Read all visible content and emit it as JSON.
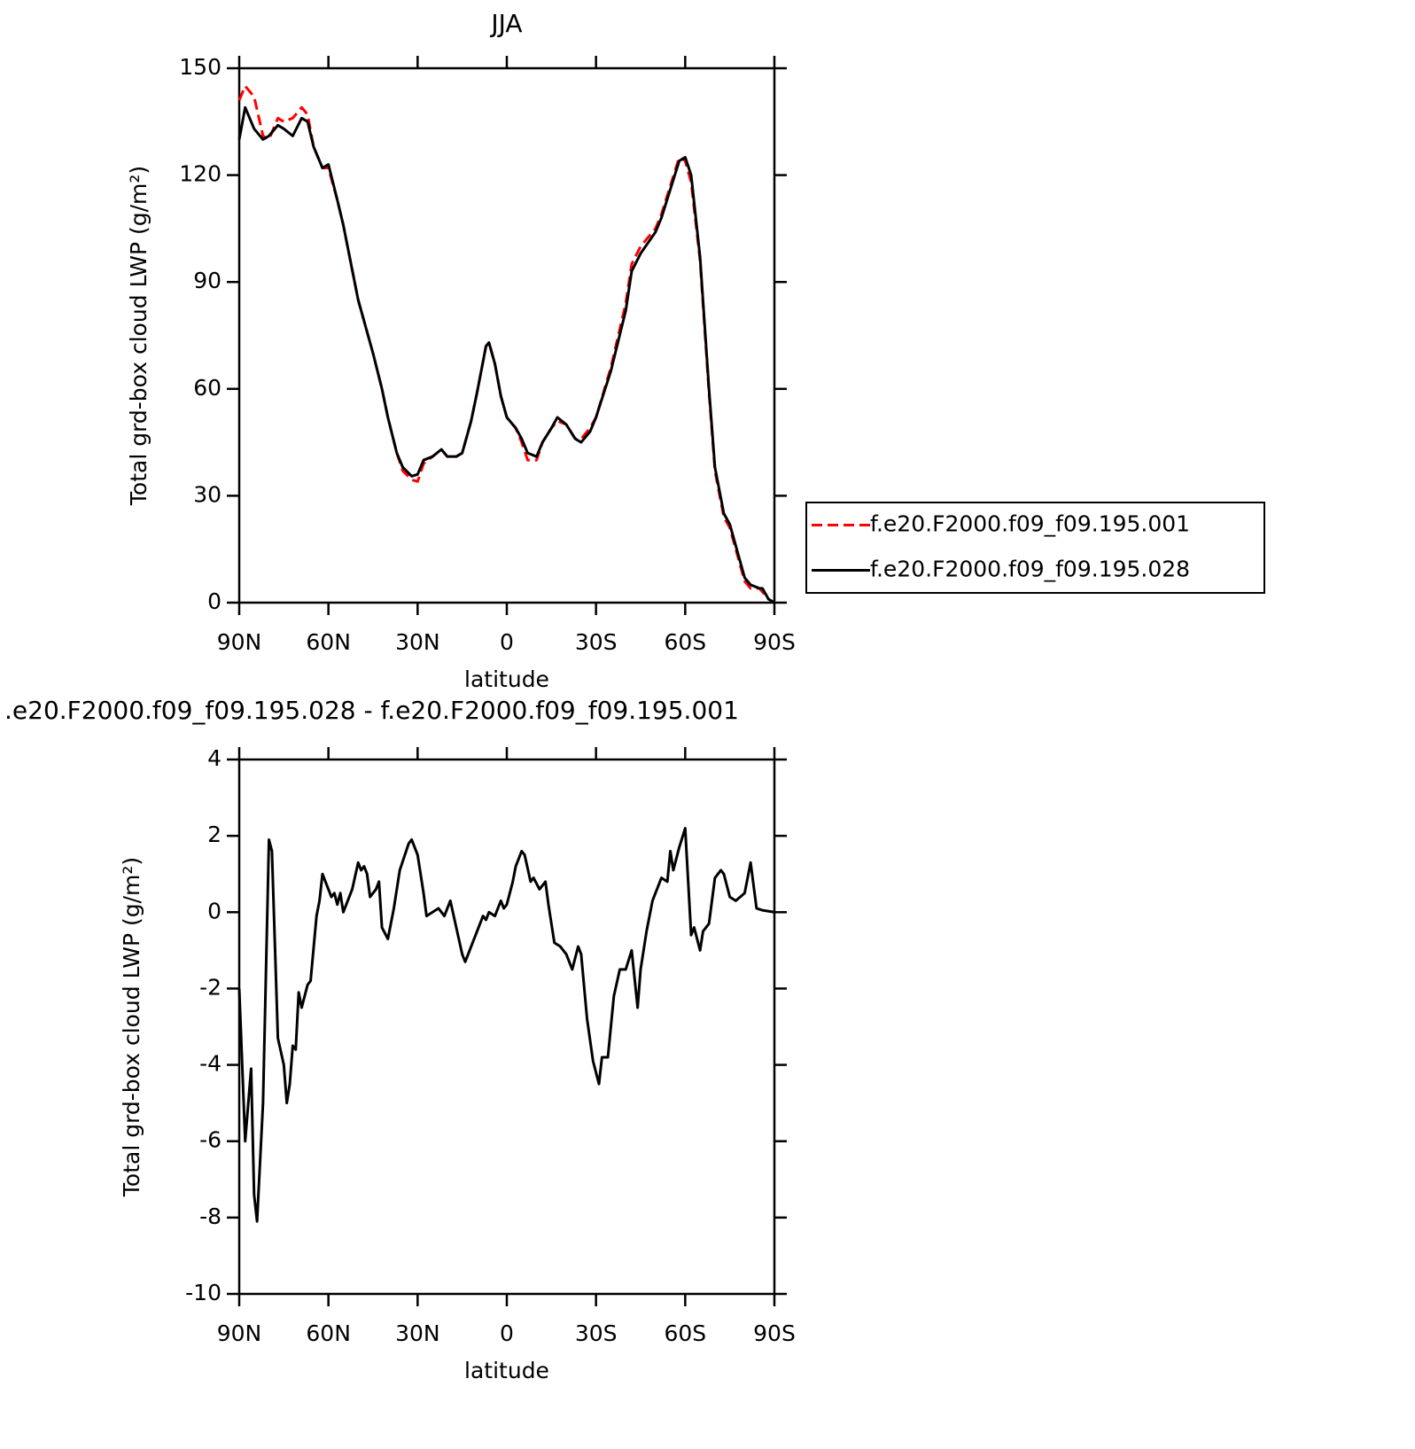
{
  "chart_data": [
    {
      "type": "line",
      "title": "JJA",
      "xlabel": "latitude",
      "ylabel": "Total grd-box cloud LWP (g/m²)",
      "x": [
        90,
        88,
        85,
        82,
        80,
        77,
        75,
        72,
        69,
        67,
        65,
        62,
        60,
        57,
        55,
        50,
        45,
        42,
        40,
        37,
        35,
        32,
        30,
        28,
        25,
        22,
        20,
        17,
        15,
        12,
        10,
        7,
        6,
        4,
        2,
        0,
        -3,
        -5,
        -7,
        -10,
        -12,
        -15,
        -17,
        -20,
        -23,
        -25,
        -28,
        -30,
        -35,
        -40,
        -42,
        -45,
        -50,
        -52,
        -55,
        -58,
        -60,
        -62,
        -65,
        -68,
        -70,
        -73,
        -75,
        -77,
        -80,
        -82,
        -85,
        -86,
        -88,
        -90
      ],
      "series": [
        {
          "name": "f.e20.F2000.f09_f09.195.001",
          "color": "#ff0000",
          "dashed": true,
          "values": [
            141,
            145,
            142,
            131,
            130,
            136,
            135,
            136,
            139,
            137,
            128,
            122,
            122,
            113,
            106,
            85,
            70,
            60,
            52,
            42,
            37,
            34.5,
            34,
            39,
            41,
            43,
            41,
            41,
            42,
            51,
            59,
            72,
            73,
            67,
            58,
            52,
            49,
            45,
            40,
            40,
            45,
            49,
            51,
            50,
            46,
            46,
            49,
            52,
            66,
            84,
            95,
            100,
            105,
            109,
            117,
            125,
            124,
            118,
            96,
            59,
            37,
            24,
            21,
            15,
            6,
            4,
            4,
            3,
            1,
            0
          ]
        },
        {
          "name": "f.e20.F2000.f09_f09.195.028",
          "color": "#000000",
          "dashed": false,
          "values": [
            130,
            139,
            133,
            130,
            131,
            134,
            133,
            131,
            136,
            135,
            128,
            122,
            123,
            113,
            106,
            85,
            70,
            60,
            52,
            42,
            38,
            35.5,
            36,
            40,
            41,
            43,
            41,
            41,
            42,
            51,
            59,
            72,
            73,
            67,
            58,
            52,
            49,
            46,
            42,
            41,
            45,
            49,
            52,
            50,
            46,
            45,
            48,
            52,
            65,
            82,
            93,
            98,
            104,
            108,
            116,
            124,
            125,
            120,
            97,
            60,
            38,
            25,
            22,
            16,
            7,
            5,
            4,
            4,
            1,
            0
          ]
        }
      ],
      "xlim": [
        90,
        -90
      ],
      "xticks": [
        {
          "value": 90,
          "label": "90N"
        },
        {
          "value": 60,
          "label": "60N"
        },
        {
          "value": 30,
          "label": "30N"
        },
        0,
        {
          "value": -30,
          "label": "30S"
        },
        {
          "value": -60,
          "label": "60S"
        },
        {
          "value": -90,
          "label": "90S"
        }
      ],
      "ylim": [
        0,
        150
      ],
      "yticks": [
        0,
        30,
        60,
        90,
        120,
        150
      ],
      "legend": "right"
    },
    {
      "type": "line",
      "title": ".e20.F2000.f09_f09.195.028 - f.e20.F2000.f09_f09.195.001",
      "xlabel": "latitude",
      "ylabel": "Total grd-box cloud LWP (g/m²)",
      "x": [
        90,
        89,
        88,
        86,
        85,
        84,
        82,
        80,
        79,
        77,
        75,
        74,
        73,
        72,
        71,
        70,
        69,
        68,
        67,
        66,
        64,
        63,
        62,
        60,
        59,
        58,
        57,
        56,
        55,
        54,
        52,
        50,
        49,
        48,
        47,
        46,
        44,
        43,
        42,
        40,
        38,
        36,
        33,
        32,
        30,
        28,
        27,
        25,
        23,
        21,
        19,
        17,
        15,
        14,
        12,
        10,
        8,
        7,
        6,
        4,
        2,
        1,
        0,
        -2,
        -3,
        -5,
        -6,
        -8,
        -9,
        -11,
        -13,
        -14,
        -16,
        -18,
        -20,
        -22,
        -24,
        -25,
        -27,
        -29,
        -31,
        -32,
        -34,
        -36,
        -38,
        -40,
        -42,
        -44,
        -45,
        -47,
        -49,
        -52,
        -54,
        -55,
        -56,
        -58,
        -60,
        -62,
        -63,
        -65,
        -66,
        -68,
        -70,
        -72,
        -73,
        -75,
        -77,
        -80,
        -82,
        -84,
        -86,
        -90
      ],
      "series": [
        {
          "color": "#000000",
          "dashed": false,
          "values": [
            -2,
            -4,
            -6,
            -4.1,
            -7.4,
            -8.1,
            -5,
            1.9,
            1.6,
            -3.3,
            -4,
            -5,
            -4.5,
            -3.5,
            -3.6,
            -2.1,
            -2.5,
            -2.2,
            -1.9,
            -1.8,
            -0.1,
            0.3,
            1.0,
            0.6,
            0.4,
            0.5,
            0.2,
            0.5,
            0.0,
            0.2,
            0.6,
            1.3,
            1.1,
            1.2,
            1.0,
            0.4,
            0.6,
            0.8,
            -0.4,
            -0.7,
            0.1,
            1.1,
            1.8,
            1.9,
            1.5,
            0.5,
            -0.1,
            0.0,
            0.1,
            -0.1,
            0.3,
            -0.4,
            -1.1,
            -1.3,
            -0.9,
            -0.5,
            -0.1,
            -0.2,
            0.0,
            -0.1,
            0.3,
            0.1,
            0.2,
            0.8,
            1.2,
            1.6,
            1.5,
            0.8,
            0.9,
            0.6,
            0.8,
            0.2,
            -0.8,
            -0.9,
            -1.1,
            -1.5,
            -0.9,
            -1.1,
            -2.8,
            -3.9,
            -4.5,
            -3.8,
            -3.8,
            -2.2,
            -1.5,
            -1.5,
            -1.0,
            -2.5,
            -1.5,
            -0.5,
            0.3,
            0.9,
            0.8,
            1.6,
            1.1,
            1.7,
            2.2,
            -0.6,
            -0.4,
            -1.0,
            -0.5,
            -0.3,
            0.9,
            1.1,
            1.0,
            0.4,
            0.3,
            0.5,
            1.3,
            0.1,
            0.05,
            0.0
          ]
        }
      ],
      "xlim": [
        90,
        -90
      ],
      "xticks": [
        {
          "value": 90,
          "label": "90N"
        },
        {
          "value": 60,
          "label": "60N"
        },
        {
          "value": 30,
          "label": "30N"
        },
        0,
        {
          "value": -30,
          "label": "30S"
        },
        {
          "value": -60,
          "label": "60S"
        },
        {
          "value": -90,
          "label": "90S"
        }
      ],
      "ylim": [
        -10,
        4
      ],
      "yticks": [
        -10,
        -8,
        -6,
        -4,
        -2,
        0,
        2,
        4
      ]
    }
  ]
}
